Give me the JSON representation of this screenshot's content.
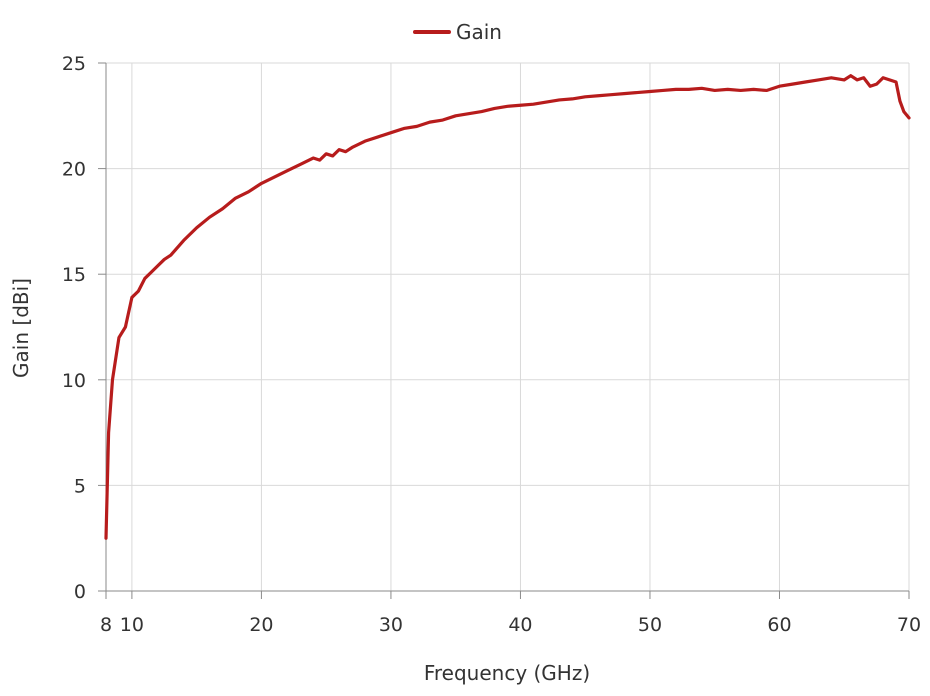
{
  "chart_data": {
    "type": "line",
    "xlabel": "Frequency (GHz)",
    "ylabel": "Gain [dBi]",
    "xlim": [
      8,
      70
    ],
    "ylim": [
      0,
      25
    ],
    "x_ticks": [
      8,
      10,
      20,
      30,
      40,
      50,
      60,
      70
    ],
    "y_ticks": [
      0,
      5,
      10,
      15,
      20,
      25
    ],
    "grid": true,
    "legend_position": "top-center",
    "series": [
      {
        "name": "Gain",
        "color": "#b71c1c",
        "x": [
          8.0,
          8.2,
          8.5,
          9.0,
          9.5,
          10.0,
          10.5,
          11.0,
          11.5,
          12.0,
          12.5,
          13.0,
          14.0,
          15.0,
          16.0,
          17.0,
          18.0,
          19.0,
          20.0,
          21.0,
          22.0,
          23.0,
          24.0,
          24.5,
          25.0,
          25.5,
          26.0,
          26.5,
          27.0,
          28.0,
          29.0,
          30.0,
          31.0,
          32.0,
          33.0,
          34.0,
          35.0,
          36.0,
          37.0,
          38.0,
          39.0,
          40.0,
          41.0,
          42.0,
          43.0,
          44.0,
          45.0,
          46.0,
          47.0,
          48.0,
          49.0,
          50.0,
          51.0,
          52.0,
          53.0,
          54.0,
          55.0,
          56.0,
          57.0,
          58.0,
          59.0,
          60.0,
          61.0,
          62.0,
          63.0,
          64.0,
          65.0,
          65.5,
          66.0,
          66.5,
          67.0,
          67.5,
          68.0,
          68.5,
          69.0,
          69.3,
          69.6,
          70.0
        ],
        "y": [
          2.5,
          7.5,
          10.0,
          12.0,
          12.5,
          13.9,
          14.2,
          14.8,
          15.1,
          15.4,
          15.7,
          15.9,
          16.6,
          17.2,
          17.7,
          18.1,
          18.6,
          18.9,
          19.3,
          19.6,
          19.9,
          20.2,
          20.5,
          20.4,
          20.7,
          20.6,
          20.9,
          20.8,
          21.0,
          21.3,
          21.5,
          21.7,
          21.9,
          22.0,
          22.2,
          22.3,
          22.5,
          22.6,
          22.7,
          22.85,
          22.95,
          23.0,
          23.05,
          23.15,
          23.25,
          23.3,
          23.4,
          23.45,
          23.5,
          23.55,
          23.6,
          23.65,
          23.7,
          23.75,
          23.75,
          23.8,
          23.7,
          23.75,
          23.7,
          23.75,
          23.7,
          23.9,
          24.0,
          24.1,
          24.2,
          24.3,
          24.2,
          24.4,
          24.2,
          24.3,
          23.9,
          24.0,
          24.3,
          24.2,
          24.1,
          23.2,
          22.7,
          22.4
        ]
      }
    ]
  }
}
